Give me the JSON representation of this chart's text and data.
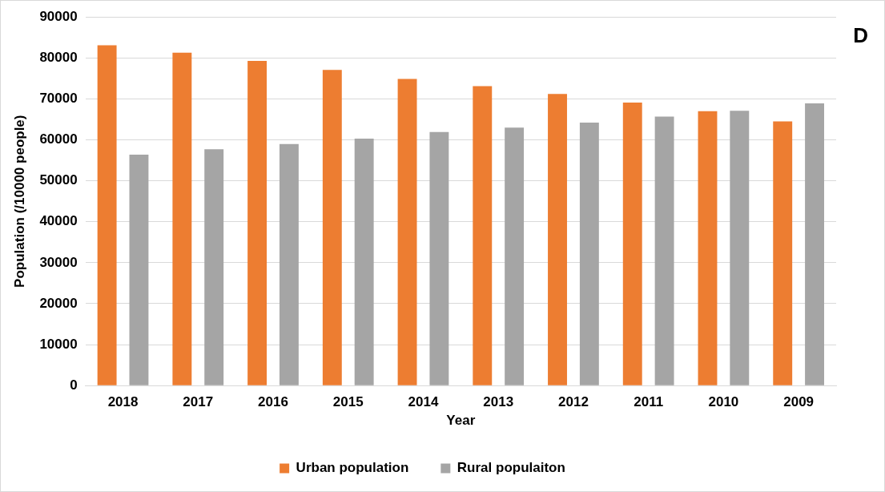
{
  "chart_data": {
    "type": "bar",
    "xlabel": "Year",
    "ylabel": "Population (/10000 people)",
    "annotations": [
      "D"
    ],
    "categories": [
      "2018",
      "2017",
      "2016",
      "2015",
      "2014",
      "2013",
      "2012",
      "2011",
      "2010",
      "2009"
    ],
    "series": [
      {
        "name": "Urban population",
        "color": "#ed7d31",
        "values": [
          83100,
          81300,
          79300,
          77100,
          74900,
          73100,
          71200,
          69100,
          67000,
          64500
        ]
      },
      {
        "name": "Rural populaiton",
        "color": "#a5a5a5",
        "values": [
          56400,
          57700,
          59000,
          60300,
          61900,
          63000,
          64200,
          65700,
          67100,
          68900
        ]
      }
    ],
    "ylim": [
      0,
      90000
    ],
    "yticks": [
      0,
      10000,
      20000,
      30000,
      40000,
      50000,
      60000,
      70000,
      80000,
      90000
    ],
    "grid": "y",
    "legend": "bottom"
  }
}
